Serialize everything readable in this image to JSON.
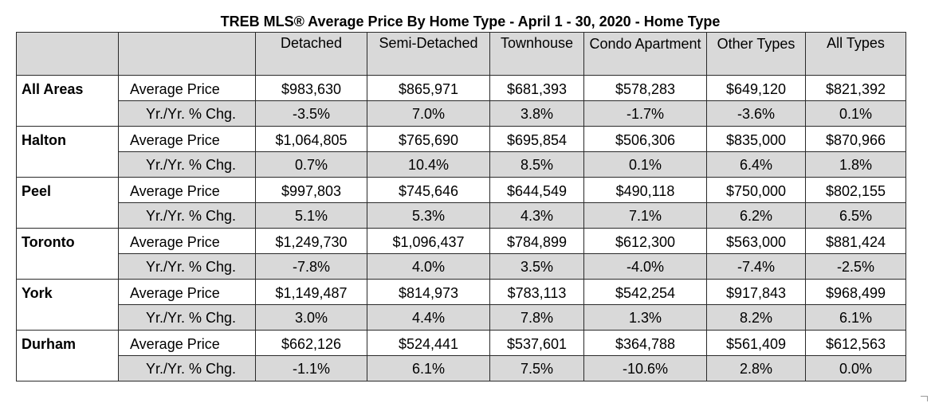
{
  "title": "TREB MLS® Average Price  By Home Type - April 1 - 30, 2020 - Home Type",
  "headers": [
    "",
    "",
    "Detached",
    "Semi-Detached",
    "Townhouse",
    "Condo Apartment",
    "Other Types",
    "All Types"
  ],
  "metric_labels": {
    "avg": "Average Price",
    "yoy": "Yr./Yr. % Chg."
  },
  "regions": [
    {
      "area": "All Areas",
      "avg": [
        "$983,630",
        "$865,971",
        "$681,393",
        "$578,283",
        "$649,120",
        "$821,392"
      ],
      "yoy": [
        "-3.5%",
        "7.0%",
        "3.8%",
        "-1.7%",
        "-3.6%",
        "0.1%"
      ]
    },
    {
      "area": "Halton",
      "avg": [
        "$1,064,805",
        "$765,690",
        "$695,854",
        "$506,306",
        "$835,000",
        "$870,966"
      ],
      "yoy": [
        "0.7%",
        "10.4%",
        "8.5%",
        "0.1%",
        "6.4%",
        "1.8%"
      ]
    },
    {
      "area": "Peel",
      "avg": [
        "$997,803",
        "$745,646",
        "$644,549",
        "$490,118",
        "$750,000",
        "$802,155"
      ],
      "yoy": [
        "5.1%",
        "5.3%",
        "4.3%",
        "7.1%",
        "6.2%",
        "6.5%"
      ]
    },
    {
      "area": "Toronto",
      "avg": [
        "$1,249,730",
        "$1,096,437",
        "$784,899",
        "$612,300",
        "$563,000",
        "$881,424"
      ],
      "yoy": [
        "-7.8%",
        "4.0%",
        "3.5%",
        "-4.0%",
        "-7.4%",
        "-2.5%"
      ]
    },
    {
      "area": "York",
      "avg": [
        "$1,149,487",
        "$814,973",
        "$783,113",
        "$542,254",
        "$917,843",
        "$968,499"
      ],
      "yoy": [
        "3.0%",
        "4.4%",
        "7.8%",
        "1.3%",
        "8.2%",
        "6.1%"
      ]
    },
    {
      "area": "Durham",
      "avg": [
        "$662,126",
        "$524,441",
        "$537,601",
        "$364,788",
        "$561,409",
        "$612,563"
      ],
      "yoy": [
        "-1.1%",
        "6.1%",
        "7.5%",
        "-10.6%",
        "2.8%",
        "0.0%"
      ]
    }
  ],
  "colors": {
    "header_fill": "#d9d9d9",
    "border": "#2a2a2a"
  }
}
